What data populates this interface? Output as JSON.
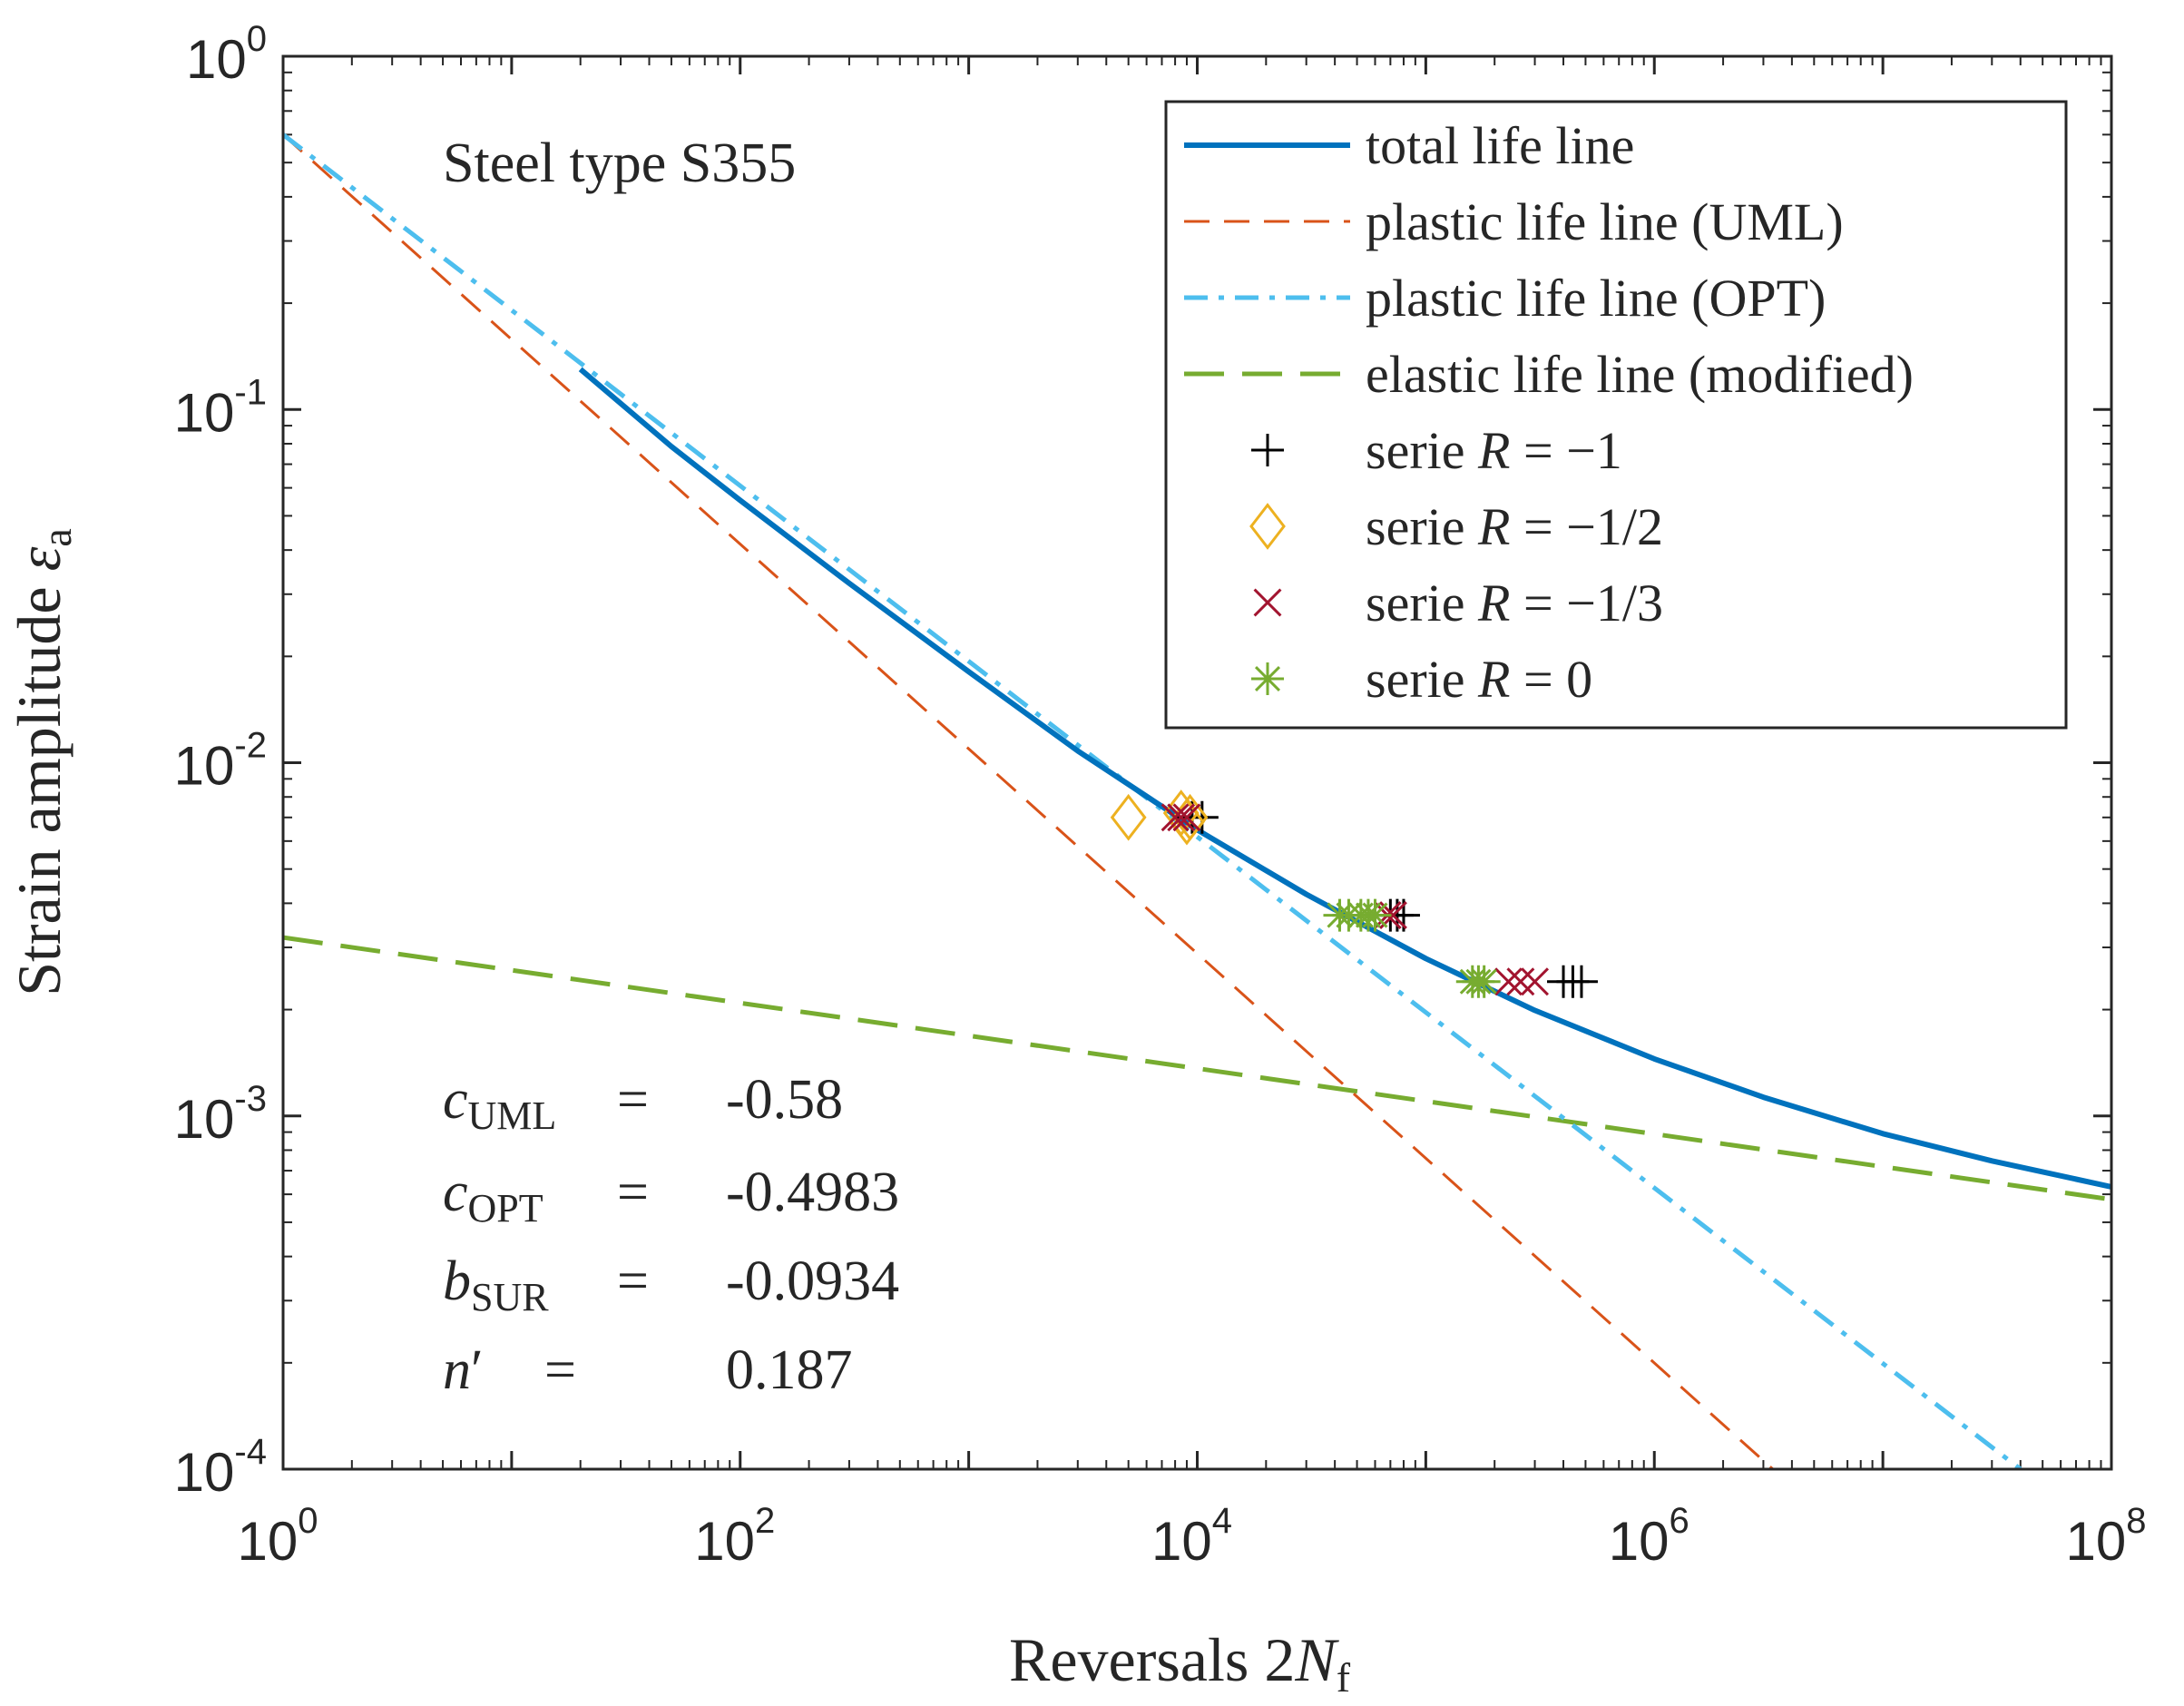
{
  "chart_data": {
    "type": "line",
    "title": "",
    "x_scale": "log",
    "y_scale": "log",
    "xlim": [
      1,
      100000000
    ],
    "ylim": [
      0.0001,
      1
    ],
    "xlabel": {
      "main": "Reversals 2",
      "italic": "N",
      "sub": "f"
    },
    "ylabel": {
      "main": "Strain amplitude ",
      "symbol": "ε",
      "sub": "a"
    },
    "x_ticks": [
      {
        "value": 1,
        "base": "10",
        "exp": "0"
      },
      {
        "value": 100,
        "base": "10",
        "exp": "2"
      },
      {
        "value": 10000,
        "base": "10",
        "exp": "4"
      },
      {
        "value": 1000000,
        "base": "10",
        "exp": "6"
      },
      {
        "value": 100000000,
        "base": "10",
        "exp": "8"
      }
    ],
    "y_ticks": [
      {
        "value": 0.0001,
        "base": "10",
        "exp": "-4"
      },
      {
        "value": 0.001,
        "base": "10",
        "exp": "-3"
      },
      {
        "value": 0.01,
        "base": "10",
        "exp": "-2"
      },
      {
        "value": 0.1,
        "base": "10",
        "exp": "-1"
      },
      {
        "value": 1,
        "base": "10",
        "exp": "0"
      }
    ],
    "annotation": "Steel type S355",
    "parameters": [
      {
        "symbol": "c",
        "sub": "UML",
        "prime": false,
        "value": "-0.58"
      },
      {
        "symbol": "c",
        "sub": "OPT",
        "prime": false,
        "value": "-0.4983"
      },
      {
        "symbol": "b",
        "sub": "SUR",
        "prime": false,
        "value": "-0.0934"
      },
      {
        "symbol": "n",
        "sub": "",
        "prime": true,
        "value": "0.187"
      }
    ],
    "series": [
      {
        "name": "total life line",
        "kind": "line",
        "style": "solid",
        "color": "#0072BD",
        "x": [
          20,
          50,
          100,
          300,
          1000,
          3000,
          10000,
          30000,
          100000,
          300000,
          1000000,
          3000000,
          10000000,
          30000000,
          100000000
        ],
        "y": [
          0.13,
          0.0786,
          0.0553,
          0.0322,
          0.0181,
          0.0108,
          0.00646,
          0.00424,
          0.00279,
          0.00199,
          0.00145,
          0.00113,
          0.000891,
          0.000746,
          0.00063
        ]
      },
      {
        "name": "plastic life line (UML)",
        "kind": "line",
        "style": "dashed",
        "color": "#D95319",
        "x": [
          1,
          3300000
        ],
        "y": [
          0.6,
          0.0001
        ]
      },
      {
        "name": "plastic life line (OPT)",
        "kind": "line",
        "style": "dashdot",
        "color": "#4DBEEE",
        "x": [
          1,
          40000000
        ],
        "y": [
          0.6,
          0.0001
        ]
      },
      {
        "name": "elastic life line (modified)",
        "kind": "line",
        "style": "dashed-wide",
        "color": "#77AC30",
        "x": [
          1,
          100000000
        ],
        "y": [
          0.0032,
          0.00058
        ]
      },
      {
        "name": "serie R = −1",
        "label_prefix": "serie ",
        "label_var": "R",
        "label_rest": " = −1",
        "kind": "markers",
        "marker": "plus",
        "color": "#000000",
        "points": [
          [
            9500,
            0.007
          ],
          [
            10500,
            0.007
          ],
          [
            70000,
            0.0037
          ],
          [
            75000,
            0.0037
          ],
          [
            80000,
            0.0037
          ],
          [
            400000,
            0.0024
          ],
          [
            440000,
            0.0024
          ],
          [
            480000,
            0.0024
          ]
        ]
      },
      {
        "name": "serie R = −1/2",
        "label_prefix": "serie ",
        "label_var": "R",
        "label_rest": " = −1/2",
        "kind": "markers",
        "marker": "diamond",
        "color": "#EDB120",
        "points": [
          [
            5000,
            0.007
          ],
          [
            8500,
            0.0072
          ],
          [
            9000,
            0.0068
          ],
          [
            9300,
            0.007
          ]
        ]
      },
      {
        "name": "serie R = −1/3",
        "label_prefix": "serie ",
        "label_var": "R",
        "label_rest": " = −1/3",
        "kind": "markers",
        "marker": "x",
        "color": "#A2142F",
        "points": [
          [
            8000,
            0.007
          ],
          [
            8500,
            0.007
          ],
          [
            9000,
            0.007
          ],
          [
            68000,
            0.0037
          ],
          [
            72000,
            0.0037
          ],
          [
            230000,
            0.0024
          ],
          [
            260000,
            0.0024
          ],
          [
            300000,
            0.0024
          ]
        ]
      },
      {
        "name": "serie R = 0",
        "label_prefix": "serie ",
        "label_var": "R",
        "label_rest": " = 0",
        "kind": "markers",
        "marker": "asterisk",
        "color": "#77AC30",
        "points": [
          [
            42000,
            0.0037
          ],
          [
            46000,
            0.0037
          ],
          [
            52000,
            0.0037
          ],
          [
            56000,
            0.0037
          ],
          [
            60000,
            0.0037
          ],
          [
            160000,
            0.0024
          ],
          [
            170000,
            0.0024
          ],
          [
            180000,
            0.0024
          ]
        ]
      }
    ]
  }
}
